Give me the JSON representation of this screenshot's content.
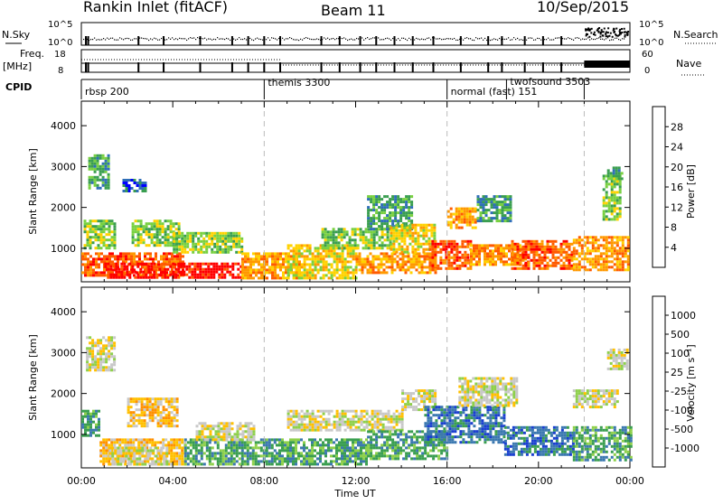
{
  "header": {
    "station": "Rankin Inlet (fitACF)",
    "beam": "Beam 11",
    "date": "10/Sep/2015"
  },
  "strips": {
    "nsky_label": "N.Sky",
    "nsky_ticks": [
      "10^5",
      "10^0"
    ],
    "nsearch_label": "N.Search",
    "nsearch_ticks": [
      "10^5",
      "10^0"
    ],
    "freq_label_1": "Freq.",
    "freq_label_2": "[MHz]",
    "freq_ticks": [
      "18",
      "8"
    ],
    "nave_label": "Nave",
    "nave_ticks": [
      "60",
      "0"
    ],
    "cpid_label": "CPID",
    "cpid_segments": [
      {
        "name": "rbsp 200",
        "start_h": 0.0
      },
      {
        "name": "themis 3300",
        "start_h": 8.0
      },
      {
        "name": "normal (fast) 151",
        "start_h": 16.0
      },
      {
        "name": "twofsound 3503",
        "start_h": 18.6
      },
      {
        "name": "",
        "start_h": 22.0
      }
    ]
  },
  "colorbars": {
    "power": {
      "label": "Power [dB]",
      "ticks": [
        "28",
        "24",
        "20",
        "16",
        "12",
        "8",
        "4"
      ],
      "colors": [
        "#ff0000",
        "#ff5a00",
        "#ff9900",
        "#ffd200",
        "#78d040",
        "#3a9e50",
        "#2f6eb8",
        "#0000ff"
      ]
    },
    "velocity": {
      "label": "Velocity [m s⁻¹]",
      "ticks": [
        "1000",
        "500",
        "100",
        "25",
        "-25",
        "-100",
        "-500",
        "-1000"
      ],
      "colors": [
        "#1a3fd0",
        "#3b78b0",
        "#3a9e50",
        "#8ed04a",
        "#c8c8c8",
        "#ffc000",
        "#ff9000",
        "#ff5500",
        "#ff0000"
      ]
    }
  },
  "chart_data": [
    {
      "type": "heatmap",
      "parameter": "Power",
      "ylabel": "Slant Range [km]",
      "ylim": [
        180,
        4600
      ],
      "yticks": [
        "1000",
        "2000",
        "3000",
        "4000"
      ],
      "xlim_hours": [
        0,
        24
      ],
      "xticks": [
        "00:00",
        "04:00",
        "08:00",
        "12:00",
        "16:00",
        "20:00",
        "00:00"
      ],
      "bands": [
        {
          "t0": 0.0,
          "t1": 4.4,
          "r0": 350,
          "r1": 900,
          "level": 6
        },
        {
          "t0": 1.0,
          "t1": 7.0,
          "r0": 300,
          "r1": 650,
          "level": 7
        },
        {
          "t0": 0.1,
          "t1": 1.5,
          "r0": 1000,
          "r1": 1700,
          "level": 3
        },
        {
          "t0": 0.3,
          "t1": 1.2,
          "r0": 2500,
          "r1": 3300,
          "level": 2
        },
        {
          "t0": 1.8,
          "t1": 2.8,
          "r0": 2400,
          "r1": 2700,
          "level": 1
        },
        {
          "t0": 2.2,
          "t1": 4.3,
          "r0": 1100,
          "r1": 1700,
          "level": 3
        },
        {
          "t0": 4.0,
          "t1": 7.0,
          "r0": 900,
          "r1": 1400,
          "level": 3
        },
        {
          "t0": 7.0,
          "t1": 9.5,
          "r0": 300,
          "r1": 900,
          "level": 5
        },
        {
          "t0": 9.0,
          "t1": 12.0,
          "r0": 300,
          "r1": 1100,
          "level": 4
        },
        {
          "t0": 10.5,
          "t1": 13.5,
          "r0": 1000,
          "r1": 1500,
          "level": 3
        },
        {
          "t0": 12.0,
          "t1": 15.5,
          "r0": 400,
          "r1": 900,
          "level": 5
        },
        {
          "t0": 12.5,
          "t1": 14.5,
          "r0": 1500,
          "r1": 2300,
          "level": 2
        },
        {
          "t0": 13.5,
          "t1": 15.5,
          "r0": 900,
          "r1": 1600,
          "level": 4
        },
        {
          "t0": 15.2,
          "t1": 17.0,
          "r0": 500,
          "r1": 1200,
          "level": 6
        },
        {
          "t0": 16.0,
          "t1": 17.2,
          "r0": 1500,
          "r1": 2000,
          "level": 5
        },
        {
          "t0": 17.0,
          "t1": 19.5,
          "r0": 600,
          "r1": 1100,
          "level": 5
        },
        {
          "t0": 17.3,
          "t1": 18.8,
          "r0": 1700,
          "r1": 2300,
          "level": 2
        },
        {
          "t0": 18.8,
          "t1": 21.5,
          "r0": 500,
          "r1": 1200,
          "level": 6
        },
        {
          "t0": 21.5,
          "t1": 23.9,
          "r0": 500,
          "r1": 1300,
          "level": 5
        },
        {
          "t0": 22.8,
          "t1": 23.6,
          "r0": 1700,
          "r1": 2800,
          "level": 3
        },
        {
          "t0": 23.0,
          "t1": 23.7,
          "r0": 2700,
          "r1": 3000,
          "level": 2
        }
      ]
    },
    {
      "type": "heatmap",
      "parameter": "Velocity",
      "ylabel": "Slant Range [km]",
      "ylim": [
        180,
        4600
      ],
      "yticks": [
        "1000",
        "2000",
        "3000",
        "4000"
      ],
      "xlim_hours": [
        0,
        24
      ],
      "xticks": [
        "00:00",
        "04:00",
        "08:00",
        "12:00",
        "16:00",
        "20:00",
        "00:00"
      ],
      "bands": [
        {
          "t0": 0.0,
          "t1": 0.8,
          "r0": 1000,
          "r1": 1600,
          "level": 6
        },
        {
          "t0": 0.8,
          "t1": 4.5,
          "r0": 250,
          "r1": 900,
          "level": 3
        },
        {
          "t0": 1.2,
          "t1": 3.8,
          "r0": 300,
          "r1": 700,
          "level": 4
        },
        {
          "t0": 0.2,
          "t1": 1.4,
          "r0": 2600,
          "r1": 3400,
          "level": 4
        },
        {
          "t0": 2.0,
          "t1": 4.2,
          "r0": 1200,
          "r1": 1900,
          "level": 3
        },
        {
          "t0": 4.5,
          "t1": 8.5,
          "r0": 300,
          "r1": 900,
          "level": 6
        },
        {
          "t0": 5.0,
          "t1": 7.5,
          "r0": 900,
          "r1": 1300,
          "level": 4
        },
        {
          "t0": 8.5,
          "t1": 12.5,
          "r0": 300,
          "r1": 900,
          "level": 6
        },
        {
          "t0": 9.0,
          "t1": 14.0,
          "r0": 1100,
          "r1": 1600,
          "level": 4
        },
        {
          "t0": 12.5,
          "t1": 16.0,
          "r0": 400,
          "r1": 1100,
          "level": 6
        },
        {
          "t0": 14.0,
          "t1": 15.5,
          "r0": 1600,
          "r1": 2100,
          "level": 4
        },
        {
          "t0": 15.0,
          "t1": 18.5,
          "r0": 800,
          "r1": 1700,
          "level": 7
        },
        {
          "t0": 16.5,
          "t1": 19.0,
          "r0": 1700,
          "r1": 2400,
          "level": 4
        },
        {
          "t0": 18.5,
          "t1": 21.5,
          "r0": 500,
          "r1": 1200,
          "level": 7
        },
        {
          "t0": 21.5,
          "t1": 24.0,
          "r0": 400,
          "r1": 1200,
          "level": 6
        },
        {
          "t0": 21.5,
          "t1": 23.5,
          "r0": 1700,
          "r1": 2100,
          "level": 4
        },
        {
          "t0": 23.0,
          "t1": 23.9,
          "r0": 2600,
          "r1": 3100,
          "level": 4
        }
      ]
    }
  ],
  "xaxis_title": "Time UT"
}
